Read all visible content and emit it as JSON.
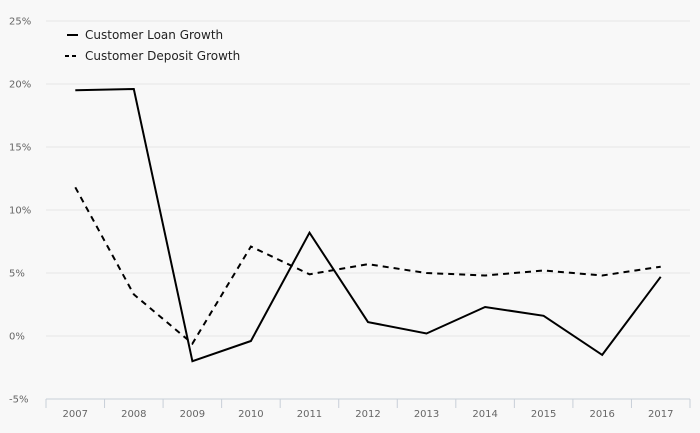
{
  "chart_data": {
    "type": "line",
    "title": "",
    "xlabel": "",
    "ylabel": "",
    "categories": [
      "2007",
      "2008",
      "2009",
      "2010",
      "2011",
      "2012",
      "2013",
      "2014",
      "2015",
      "2016",
      "2017"
    ],
    "y_ticks": [
      "-5%",
      "0%",
      "5%",
      "10%",
      "15%",
      "20%",
      "25%"
    ],
    "ylim": [
      -5,
      25
    ],
    "y_tick_values": [
      -5,
      0,
      5,
      10,
      15,
      20,
      25
    ],
    "y_unit": "%",
    "grid": true,
    "legend_position": "top-left",
    "series": [
      {
        "name": "Customer Loan Growth",
        "style": "solid",
        "color": "#000000",
        "values": [
          19.5,
          19.6,
          -2.0,
          -0.4,
          8.2,
          1.1,
          0.2,
          2.3,
          1.6,
          -1.5,
          4.7
        ]
      },
      {
        "name": "Customer Deposit Growth",
        "style": "dashed",
        "color": "#000000",
        "values": [
          11.8,
          3.3,
          -0.6,
          7.1,
          4.9,
          5.7,
          5.0,
          4.8,
          5.2,
          4.8,
          5.5
        ]
      }
    ]
  }
}
